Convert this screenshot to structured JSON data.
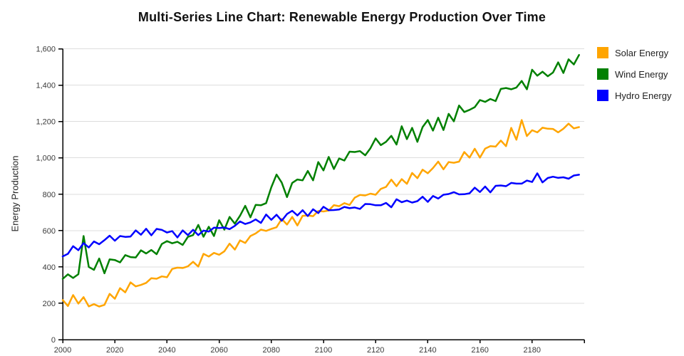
{
  "chart_data": {
    "type": "line",
    "title": "Multi-Series Line Chart: Renewable Energy Production Over Time",
    "xlabel": "",
    "ylabel": "Energy Production",
    "xlim": [
      2000,
      2200
    ],
    "ylim": [
      0,
      1600
    ],
    "grid": "horizontal",
    "legend_position": "top-right",
    "axis_color": "#000000",
    "grid_color": "#dddddd",
    "tick_label_color": "#3a3a3a",
    "x_ticks": {
      "values": [
        2000,
        2020,
        2040,
        2060,
        2080,
        2100,
        2120,
        2140,
        2160,
        2180
      ],
      "labels": [
        "2000",
        "2020",
        "2040",
        "2060",
        "2080",
        "2100",
        "2120",
        "2140",
        "2160",
        "2180"
      ]
    },
    "y_ticks": {
      "values": [
        0,
        200,
        400,
        600,
        800,
        1000,
        1200,
        1400,
        1600
      ],
      "labels": [
        "0",
        "200",
        "400",
        "600",
        "800",
        "1,000",
        "1,200",
        "1,400",
        "1,600"
      ]
    },
    "x": [
      2000,
      2002,
      2004,
      2006,
      2008,
      2010,
      2012,
      2014,
      2016,
      2018,
      2020,
      2022,
      2024,
      2026,
      2028,
      2030,
      2032,
      2034,
      2036,
      2038,
      2040,
      2042,
      2044,
      2046,
      2048,
      2050,
      2052,
      2054,
      2056,
      2058,
      2060,
      2062,
      2064,
      2066,
      2068,
      2070,
      2072,
      2074,
      2076,
      2078,
      2080,
      2082,
      2084,
      2086,
      2088,
      2090,
      2092,
      2094,
      2096,
      2098,
      2100,
      2102,
      2104,
      2106,
      2108,
      2110,
      2112,
      2114,
      2116,
      2118,
      2120,
      2122,
      2124,
      2126,
      2128,
      2130,
      2132,
      2134,
      2136,
      2138,
      2140,
      2142,
      2144,
      2146,
      2148,
      2150,
      2152,
      2154,
      2156,
      2158,
      2160,
      2162,
      2164,
      2166,
      2168,
      2170,
      2172,
      2174,
      2176,
      2178,
      2180,
      2182,
      2184,
      2186,
      2188,
      2190,
      2192,
      2194,
      2196,
      2198
    ],
    "series": [
      {
        "name": "Solar Energy",
        "color": "#FFA500",
        "values": [
          218,
          185,
          245,
          198,
          234,
          183,
          195,
          182,
          191,
          252,
          225,
          283,
          260,
          315,
          293,
          301,
          312,
          338,
          335,
          348,
          343,
          389,
          396,
          394,
          403,
          428,
          402,
          472,
          457,
          477,
          467,
          486,
          528,
          495,
          546,
          532,
          570,
          584,
          605,
          598,
          609,
          618,
          664,
          633,
          675,
          628,
          681,
          683,
          679,
          708,
          705,
          710,
          740,
          734,
          751,
          741,
          781,
          796,
          793,
          803,
          797,
          829,
          840,
          880,
          844,
          883,
          857,
          917,
          888,
          935,
          915,
          944,
          979,
          937,
          977,
          973,
          979,
          1032,
          1001,
          1050,
          1001,
          1051,
          1064,
          1062,
          1095,
          1064,
          1165,
          1100,
          1208,
          1120,
          1152,
          1140,
          1166,
          1160,
          1159,
          1140,
          1160,
          1188,
          1162,
          1169
        ]
      },
      {
        "name": "Wind Energy",
        "color": "#008000",
        "values": [
          334,
          359,
          339,
          360,
          570,
          400,
          384,
          446,
          365,
          442,
          438,
          425,
          465,
          454,
          452,
          491,
          474,
          493,
          470,
          526,
          542,
          530,
          538,
          521,
          565,
          575,
          631,
          566,
          621,
          570,
          657,
          605,
          675,
          638,
          682,
          736,
          673,
          741,
          739,
          751,
          838,
          908,
          864,
          784,
          862,
          881,
          876,
          928,
          876,
          977,
          931,
          1005,
          939,
          997,
          985,
          1034,
          1032,
          1037,
          1014,
          1053,
          1107,
          1070,
          1088,
          1121,
          1073,
          1174,
          1103,
          1165,
          1088,
          1169,
          1208,
          1150,
          1221,
          1153,
          1242,
          1201,
          1288,
          1252,
          1264,
          1279,
          1318,
          1308,
          1324,
          1312,
          1379,
          1384,
          1377,
          1387,
          1423,
          1377,
          1485,
          1452,
          1474,
          1449,
          1469,
          1525,
          1467,
          1542,
          1514,
          1566
        ]
      },
      {
        "name": "Hydro Energy",
        "color": "#0000FF",
        "values": [
          458,
          472,
          514,
          492,
          531,
          507,
          540,
          525,
          547,
          572,
          544,
          570,
          565,
          567,
          601,
          577,
          610,
          574,
          609,
          604,
          589,
          597,
          562,
          601,
          575,
          604,
          575,
          600,
          594,
          616,
          614,
          617,
          608,
          626,
          650,
          636,
          645,
          661,
          642,
          688,
          659,
          687,
          654,
          691,
          709,
          683,
          712,
          680,
          717,
          696,
          731,
          712,
          713,
          716,
          730,
          723,
          727,
          719,
          746,
          745,
          739,
          739,
          752,
          728,
          772,
          756,
          765,
          754,
          762,
          786,
          758,
          790,
          776,
          797,
          801,
          811,
          799,
          800,
          805,
          836,
          812,
          842,
          810,
          846,
          848,
          844,
          862,
          858,
          858,
          875,
          867,
          915,
          865,
          889,
          896,
          890,
          893,
          885,
          903,
          907
        ]
      }
    ]
  }
}
